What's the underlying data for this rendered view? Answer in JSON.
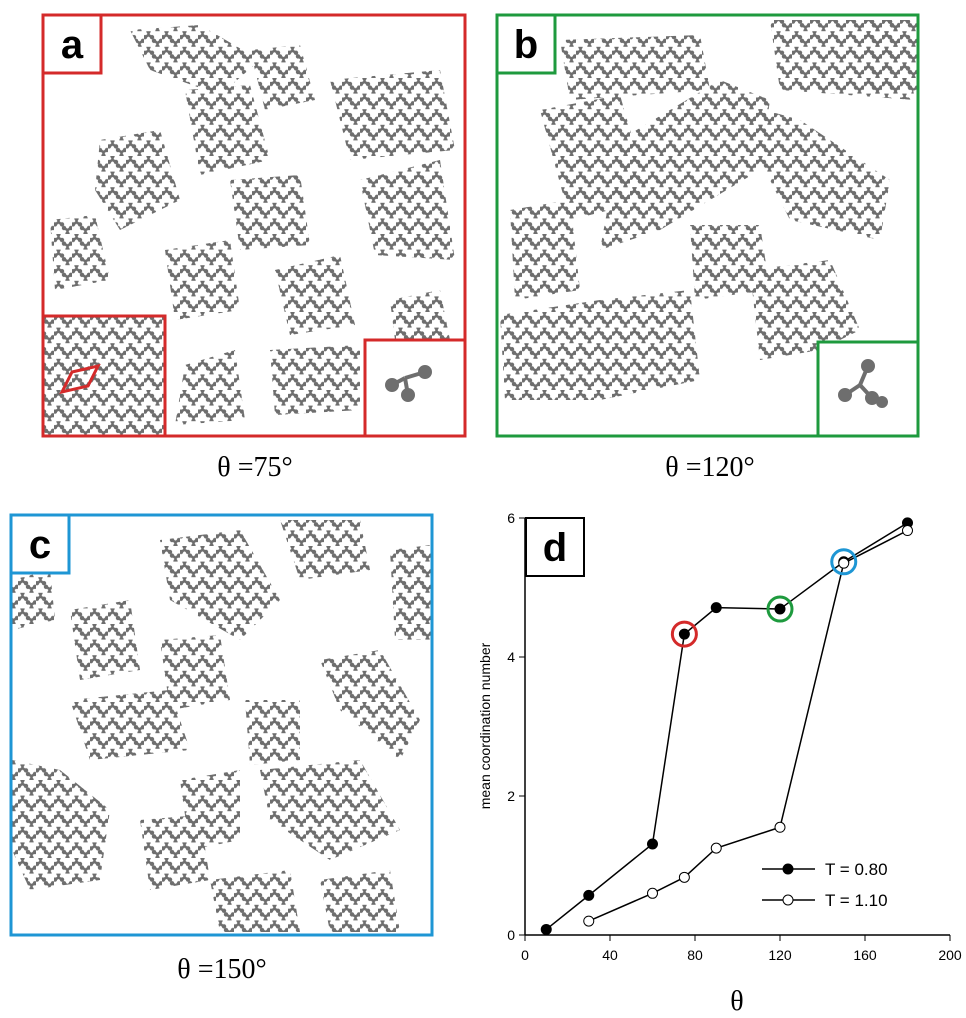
{
  "panels": [
    {
      "label": "a",
      "caption": "θ =75°"
    },
    {
      "label": "b",
      "caption": "θ =120°"
    },
    {
      "label": "c",
      "caption": "θ =150°"
    }
  ],
  "chart_data": {
    "type": "line",
    "panel_label": "d",
    "x_label": "θ",
    "y_label": "mean coordination number",
    "xlim": [
      0,
      200
    ],
    "xticks": [
      0,
      40,
      80,
      120,
      160,
      200
    ],
    "ylim": [
      0,
      6
    ],
    "yticks": [
      0,
      2,
      4,
      6
    ],
    "series": [
      {
        "name": "T = 0.80",
        "color": "#000000",
        "marker": "filled",
        "x": [
          10,
          30,
          60,
          75,
          90,
          120,
          150,
          180
        ],
        "values": [
          0.08,
          0.57,
          1.31,
          4.33,
          4.71,
          4.69,
          5.37,
          5.93
        ]
      },
      {
        "name": "T = 1.10",
        "color": "#000000",
        "marker": "open",
        "x": [
          30,
          60,
          75,
          90,
          120,
          150,
          180
        ],
        "values": [
          0.2,
          0.6,
          0.83,
          1.25,
          1.55,
          5.35,
          5.82
        ]
      }
    ]
  }
}
